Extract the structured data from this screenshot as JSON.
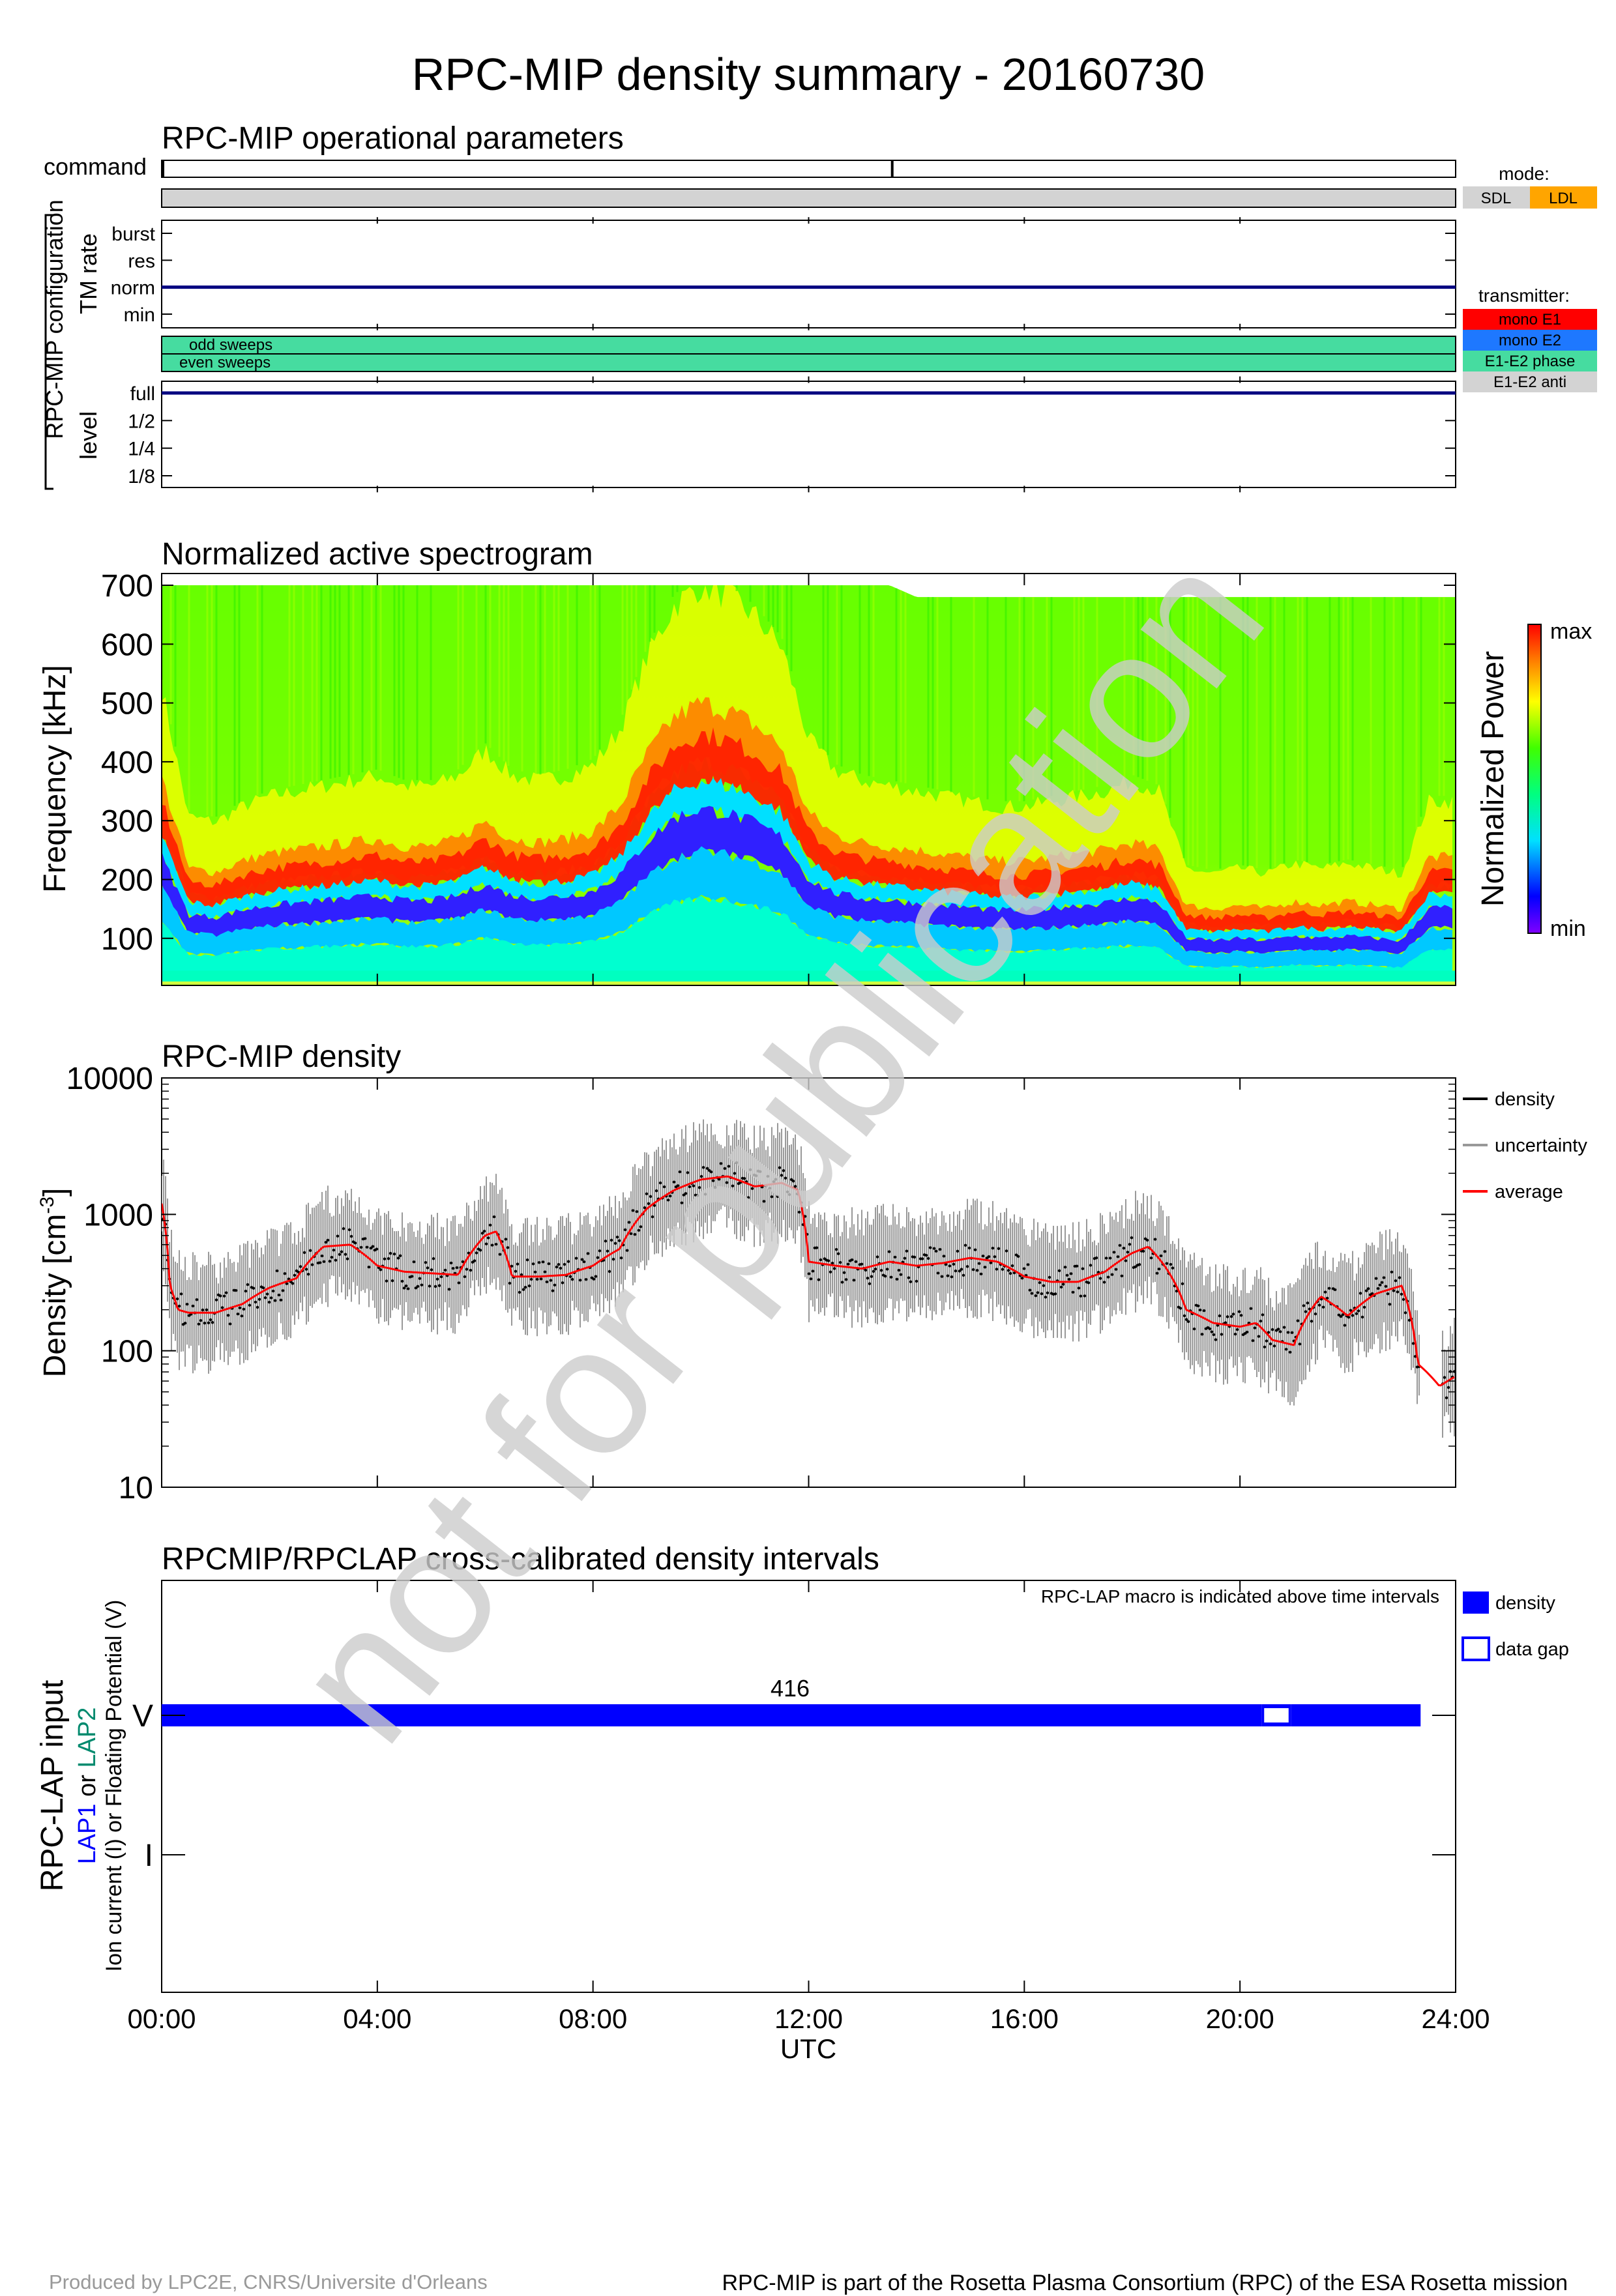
{
  "figure": {
    "title": "RPC-MIP density summary - 20160730",
    "watermark": "not for publication",
    "footer_left": "Produced by LPC2E, CNRS/Universite d'Orleans",
    "footer_right": "RPC-MIP is part of the Rosetta Plasma Consortium (RPC) of the ESA Rosetta mission"
  },
  "time_axis": {
    "ticks": [
      "00:00",
      "04:00",
      "08:00",
      "12:00",
      "16:00",
      "20:00",
      "24:00"
    ],
    "label": "UTC",
    "range_hours": [
      0,
      24
    ]
  },
  "operational": {
    "title": "RPC-MIP operational parameters",
    "command_label": "command",
    "command_marks_hours": [
      0.0,
      13.55
    ],
    "group_label": "RPC-MIP configuration",
    "tm_rate_label": "TM rate",
    "tm_rate_levels": [
      "burst",
      "res",
      "norm",
      "min"
    ],
    "tm_rate_value": "norm",
    "sweeps": [
      "odd sweeps",
      "even sweeps"
    ],
    "level_label": "level",
    "level_levels": [
      "full",
      "1/2",
      "1/4",
      "1/8"
    ],
    "level_value": "full",
    "mode_title": "mode:",
    "modes": [
      {
        "label": "SDL",
        "color": "#d3d3d3"
      },
      {
        "label": "LDL",
        "color": "#ffa500"
      }
    ],
    "transmitter_title": "transmitter:",
    "transmitters": [
      {
        "label": "mono E1",
        "color": "#ff0000"
      },
      {
        "label": "mono E2",
        "color": "#1e78ff"
      },
      {
        "label": "E1-E2 phase",
        "color": "#46dca0"
      },
      {
        "label": "E1-E2 anti",
        "color": "#d3d3d3"
      }
    ]
  },
  "spectrogram": {
    "title": "Normalized active spectrogram",
    "ylabel": "Frequency [kHz]",
    "yticks": [
      100,
      200,
      300,
      400,
      500,
      600,
      700
    ],
    "ylim": [
      20,
      720
    ],
    "colorbar_label": "Normalized Power",
    "colorbar_max": "max",
    "colorbar_min": "min"
  },
  "density": {
    "title": "RPC-MIP density",
    "ylabel": "Density [cm",
    "ylabel_exp": "-3",
    "ylabel_end": "]",
    "yticks": [
      "10000",
      "1000",
      "100",
      "10"
    ],
    "legend": [
      {
        "label": "density",
        "color": "#000000"
      },
      {
        "label": "uncertainty",
        "color": "#999999"
      },
      {
        "label": "average",
        "color": "#ff0000"
      }
    ]
  },
  "crosscal": {
    "title": "RPCMIP/RPCLAP cross-calibrated density intervals",
    "note": "RPC-LAP macro is indicated above time intervals",
    "ylabel_main": "RPC-LAP input",
    "ylabel_lap1": "LAP1",
    "ylabel_or": " or ",
    "ylabel_lap2": "LAP2",
    "ylabel_sub": "Ion current (I) or Floating Potential (V)",
    "rows": [
      "V",
      "I"
    ],
    "macro": "416",
    "legend": [
      {
        "label": "density",
        "style": "filled",
        "color": "#0000ff"
      },
      {
        "label": "data gap",
        "style": "outline",
        "color": "#0000ff"
      }
    ]
  },
  "chart_data": [
    {
      "type": "heatmap",
      "title": "Normalized active spectrogram",
      "xlabel": "UTC",
      "ylabel": "Frequency [kHz]",
      "ylim": [
        20,
        720
      ],
      "x_hours": [
        0,
        0.5,
        1,
        1.5,
        2,
        2.5,
        3,
        3.5,
        4,
        4.5,
        5,
        5.5,
        6,
        6.5,
        7,
        7.5,
        8,
        8.5,
        9,
        9.5,
        10,
        10.5,
        11,
        11.5,
        12,
        12.5,
        13,
        13.5,
        14,
        14.5,
        15,
        15.5,
        16,
        16.5,
        17,
        17.5,
        18,
        18.5,
        19,
        19.5,
        20,
        20.5,
        21,
        21.5,
        22,
        22.5,
        23,
        23.5,
        24
      ],
      "plasma_line_khz": [
        300,
        175,
        170,
        185,
        195,
        200,
        205,
        210,
        215,
        205,
        205,
        215,
        240,
        215,
        210,
        215,
        225,
        260,
        330,
        380,
        400,
        390,
        370,
        340,
        250,
        220,
        210,
        205,
        200,
        195,
        190,
        185,
        185,
        190,
        195,
        200,
        210,
        200,
        125,
        120,
        125,
        120,
        130,
        125,
        130,
        125,
        120,
        190,
        190
      ],
      "max_frequency_khz": [
        700,
        700,
        700,
        700,
        700,
        700,
        700,
        700,
        700,
        700,
        700,
        700,
        700,
        700,
        700,
        700,
        700,
        700,
        700,
        700,
        700,
        700,
        700,
        700,
        700,
        700,
        700,
        700,
        680,
        680,
        680,
        680,
        680,
        680,
        680,
        680,
        680,
        680,
        680,
        680,
        680,
        680,
        680,
        680,
        680,
        680,
        680,
        680,
        680
      ]
    },
    {
      "type": "line",
      "title": "RPC-MIP density",
      "xlabel": "UTC",
      "ylabel": "Density [cm-3]",
      "yscale": "log",
      "ylim": [
        10,
        10000
      ],
      "x_hours": [
        0,
        0.15,
        0.3,
        0.5,
        1,
        1.5,
        2,
        2.5,
        3,
        3.5,
        4,
        4.5,
        5,
        5.5,
        6,
        6.2,
        6.5,
        7,
        7.5,
        8,
        8.5,
        9,
        9.5,
        10,
        10.5,
        11,
        11.5,
        11.8,
        12,
        12.5,
        13,
        13.5,
        14,
        14.5,
        15,
        15.5,
        16,
        16.5,
        17,
        17.5,
        18,
        18.3,
        18.6,
        19,
        19.5,
        20,
        20.3,
        20.6,
        21,
        21.5,
        22,
        22.5,
        23,
        23.3,
        23.7,
        24
      ],
      "series": [
        {
          "name": "average",
          "values": [
            1200,
            300,
            200,
            190,
            190,
            220,
            290,
            340,
            580,
            600,
            420,
            380,
            370,
            360,
            700,
            750,
            350,
            350,
            360,
            420,
            560,
            1100,
            1500,
            1800,
            1900,
            1600,
            1700,
            1500,
            450,
            420,
            400,
            450,
            420,
            440,
            480,
            450,
            350,
            320,
            320,
            380,
            520,
            580,
            420,
            200,
            160,
            150,
            160,
            120,
            110,
            250,
            180,
            260,
            300,
            80,
            55,
            65
          ]
        }
      ]
    },
    {
      "type": "bar",
      "title": "RPCMIP/RPCLAP cross-calibrated density intervals",
      "xlabel": "UTC",
      "intervals": [
        {
          "row": "V",
          "start_hour": 0.0,
          "end_hour": 20.4,
          "kind": "density",
          "macro": "416"
        },
        {
          "row": "V",
          "start_hour": 20.4,
          "end_hour": 20.95,
          "kind": "data gap"
        },
        {
          "row": "V",
          "start_hour": 20.95,
          "end_hour": 23.35,
          "kind": "density"
        }
      ]
    }
  ]
}
